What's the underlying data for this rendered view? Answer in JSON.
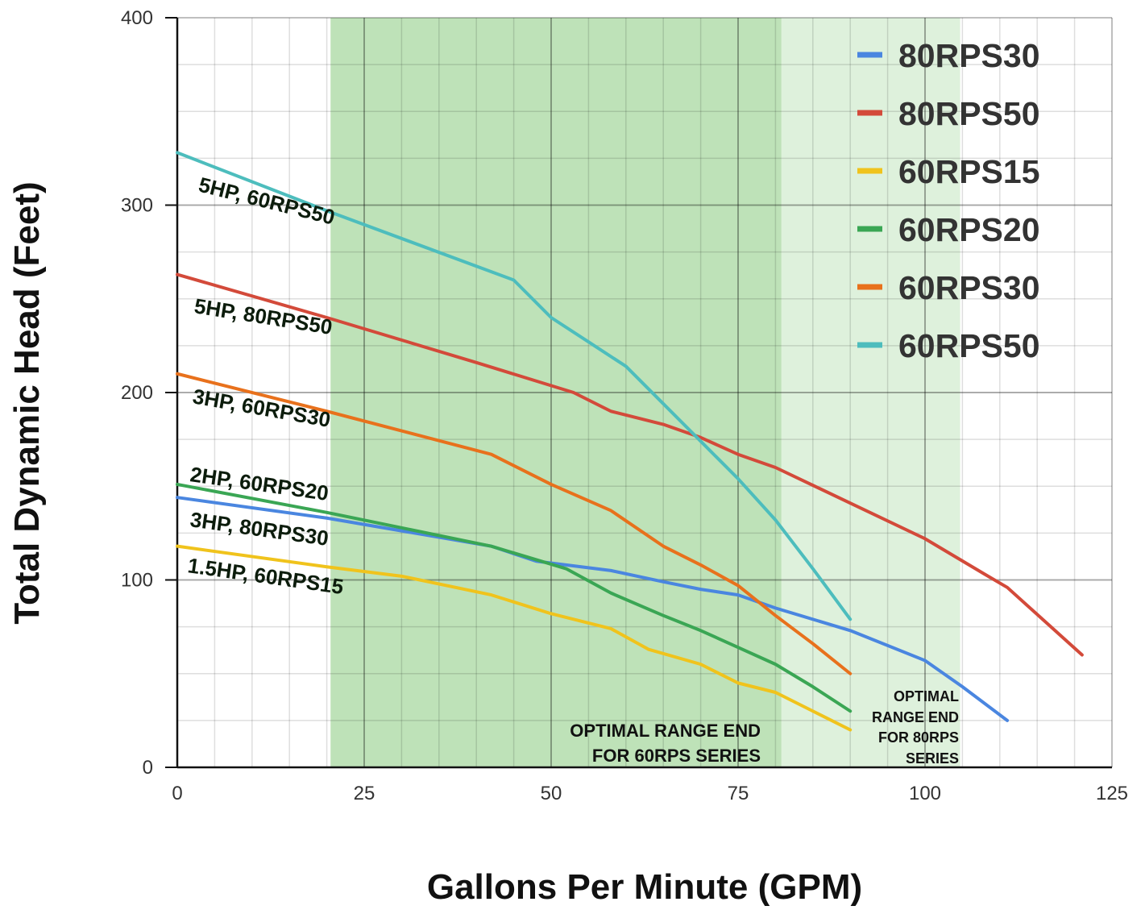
{
  "chart_data": {
    "type": "line",
    "y_label": "Total Dynamic Head (Feet)",
    "x_label": "Gallons Per Minute (GPM)",
    "xlim": [
      0,
      125
    ],
    "ylim": [
      0,
      400
    ],
    "xticks": [
      0,
      25,
      50,
      75,
      100,
      125
    ],
    "yticks": [
      0,
      100,
      200,
      300,
      400
    ],
    "grid": true,
    "x_minor_divisions": 5,
    "y_minor_divisions": 4,
    "legend": "upper right",
    "shaded_regions": [
      {
        "xlim": [
          20.5,
          80.8
        ],
        "color": "#a8d8a0"
      },
      {
        "xlim": [
          80.8,
          104.7
        ],
        "color": "#d3ecd0"
      }
    ],
    "series": [
      {
        "name": "80RPS30",
        "color": "#4a86e0",
        "x": [
          0,
          20,
          42,
          48,
          58,
          65,
          70,
          75,
          80,
          90,
          100,
          105,
          111
        ],
        "values": [
          144,
          133,
          118,
          110,
          105,
          99,
          95,
          92,
          85,
          73,
          57,
          43,
          25
        ]
      },
      {
        "name": "80RPS50",
        "color": "#d34a3a",
        "x": [
          0,
          20,
          40,
          53,
          58,
          65,
          70,
          75,
          80,
          90,
          100,
          108,
          111,
          121
        ],
        "values": [
          263,
          240,
          216,
          200,
          190,
          183,
          176,
          167,
          160,
          141,
          122,
          103,
          96,
          60
        ]
      },
      {
        "name": "60RPS15",
        "color": "#f0c31c",
        "x": [
          0,
          20,
          30,
          42,
          50,
          58,
          63,
          70,
          75,
          80,
          85,
          90
        ],
        "values": [
          118,
          107,
          102,
          92,
          82,
          74,
          63,
          55,
          45,
          40,
          30,
          20
        ]
      },
      {
        "name": "60RPS20",
        "color": "#3aa654",
        "x": [
          0,
          20,
          42,
          52,
          58,
          65,
          70,
          75,
          80,
          85,
          90
        ],
        "values": [
          151,
          136,
          118,
          106,
          93,
          81,
          73,
          64,
          55,
          43,
          30
        ]
      },
      {
        "name": "60RPS30",
        "color": "#e8711c",
        "x": [
          0,
          20,
          42,
          50,
          58,
          65,
          70,
          75,
          80,
          85,
          90
        ],
        "values": [
          210,
          190,
          167,
          151,
          137,
          118,
          108,
          97,
          81,
          66,
          50
        ]
      },
      {
        "name": "60RPS50",
        "color": "#4dbdbd",
        "x": [
          0,
          20,
          45,
          50,
          55,
          60,
          65,
          70,
          75,
          80,
          85,
          90
        ],
        "values": [
          328,
          297,
          260,
          240,
          227,
          214,
          194,
          174,
          154,
          132,
          106,
          79
        ]
      }
    ],
    "curve_labels": [
      "5HP,  60RPS50",
      "5HP, 80RPS50",
      "3HP, 60RPS30",
      "2HP, 60RPS20",
      "3HP, 80RPS30",
      "1.5HP, 60RPS15"
    ],
    "annotations": [
      {
        "lines": [
          "OPTIMAL RANGE END",
          "FOR 60RPS SERIES"
        ]
      },
      {
        "lines": [
          "OPTIMAL",
          "RANGE END",
          "FOR 80RPS",
          "SERIES"
        ]
      }
    ]
  }
}
